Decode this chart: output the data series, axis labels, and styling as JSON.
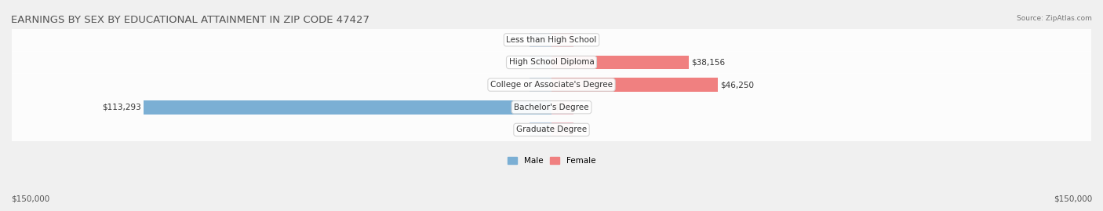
{
  "title": "EARNINGS BY SEX BY EDUCATIONAL ATTAINMENT IN ZIP CODE 47427",
  "source": "Source: ZipAtlas.com",
  "categories": [
    "Less than High School",
    "High School Diploma",
    "College or Associate's Degree",
    "Bachelor's Degree",
    "Graduate Degree"
  ],
  "male_values": [
    0,
    0,
    0,
    113293,
    0
  ],
  "female_values": [
    0,
    38156,
    46250,
    0,
    0
  ],
  "max_value": 150000,
  "male_color": "#7bafd4",
  "female_color": "#f08080",
  "male_light": "#b8d0e8",
  "female_light": "#f4b8c1",
  "bg_color": "#f0f0f0",
  "row_bg": "#e8e8e8",
  "legend_male": "Male",
  "legend_female": "Female",
  "left_label": "$150,000",
  "right_label": "$150,000",
  "title_fontsize": 9.5,
  "label_fontsize": 7.5,
  "category_fontsize": 7.5
}
